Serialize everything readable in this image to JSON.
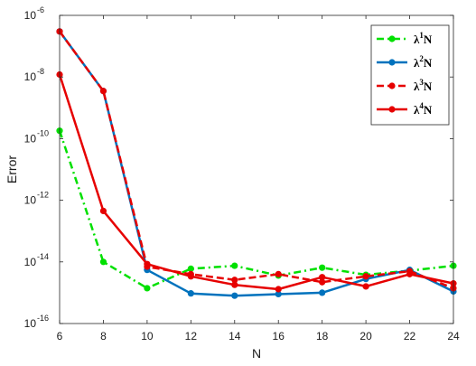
{
  "chart_data": {
    "type": "line",
    "xlabel": "N",
    "ylabel": "Error",
    "xlim": [
      6,
      24
    ],
    "ylim": [
      1e-16,
      1e-06
    ],
    "yscale": "log",
    "grid": false,
    "legend_position": "top-right",
    "x": [
      6,
      8,
      10,
      12,
      14,
      16,
      18,
      20,
      22,
      24
    ],
    "x_ticks": [
      "6",
      "8",
      "10",
      "12",
      "14",
      "16",
      "18",
      "20",
      "22",
      "24"
    ],
    "y_ticks": [
      {
        "base": "10",
        "exp": "-16"
      },
      {
        "base": "10",
        "exp": "-14"
      },
      {
        "base": "10",
        "exp": "-12"
      },
      {
        "base": "10",
        "exp": "-10"
      },
      {
        "base": "10",
        "exp": "-8"
      },
      {
        "base": "10",
        "exp": "-6"
      }
    ],
    "series": [
      {
        "name": "λ1N",
        "legend_main": "λ",
        "legend_sup": "1",
        "legend_suffix": "N",
        "color": "#00e000",
        "dash": "8,4,2,4",
        "values": [
          1.8e-10,
          1e-14,
          1.4e-15,
          6e-15,
          7.5e-15,
          3.6e-15,
          6.5e-15,
          3.8e-15,
          5.2e-15,
          7.5e-15
        ]
      },
      {
        "name": "λ2N",
        "legend_main": "λ",
        "legend_sup": "2",
        "legend_suffix": "N",
        "color": "#0072bd",
        "dash": "",
        "values": [
          3e-07,
          3.5e-09,
          5.5e-15,
          9.5e-16,
          8e-16,
          9e-16,
          1e-15,
          2.8e-15,
          5.5e-15,
          1.1e-15
        ]
      },
      {
        "name": "λ3N",
        "legend_main": "λ",
        "legend_sup": "3",
        "legend_suffix": "N",
        "color": "#e60000",
        "dash": "8,4",
        "values": [
          3e-07,
          3.5e-09,
          7e-15,
          4e-15,
          2.6e-15,
          4e-15,
          2.2e-15,
          3.4e-15,
          5e-15,
          1.4e-15
        ]
      },
      {
        "name": "λ4N",
        "legend_main": "λ",
        "legend_sup": "4",
        "legend_suffix": "N",
        "color": "#e60000",
        "dash": "",
        "values": [
          1.2e-08,
          4.5e-13,
          8.5e-15,
          3.4e-15,
          1.8e-15,
          1.3e-15,
          3.2e-15,
          1.6e-15,
          4e-15,
          2e-15
        ]
      }
    ]
  }
}
